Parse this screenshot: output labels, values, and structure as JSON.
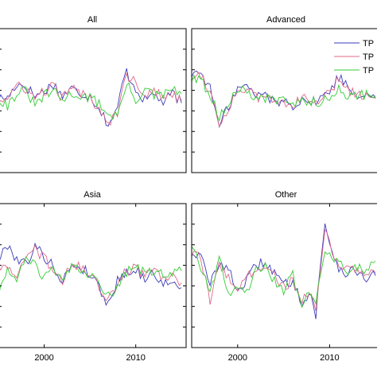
{
  "chart_data": [
    {
      "type": "line",
      "title": "All",
      "xlim": [
        1995,
        2015.5
      ],
      "xticks": [],
      "ylim": [
        -1.5,
        1.5
      ],
      "legend": null,
      "series": [
        {
          "color": "#3b3bb8",
          "x": [
            1995,
            1996,
            1997,
            1998,
            1999,
            2000,
            2001,
            2002,
            2003,
            2004,
            2005,
            2006,
            2007,
            2008,
            2008.5,
            2009,
            2010,
            2011,
            2012,
            2013,
            2014,
            2015
          ],
          "y": [
            0.05,
            0.05,
            0.35,
            0.3,
            0.1,
            0.2,
            0.35,
            0.1,
            0.25,
            0.15,
            0.1,
            -0.15,
            -0.5,
            -0.2,
            0.35,
            0.6,
            0.25,
            0.0,
            0.15,
            -0.05,
            0.15,
            -0.05
          ]
        },
        {
          "color": "#e06a8a",
          "x": [
            1995,
            1996,
            1997,
            1998,
            1999,
            2000,
            2001,
            2002,
            2003,
            2004,
            2005,
            2006,
            2007,
            2008,
            2008.5,
            2009,
            2010,
            2011,
            2012,
            2013,
            2014,
            2015
          ],
          "y": [
            0.0,
            0.05,
            0.3,
            0.25,
            0.05,
            0.2,
            0.3,
            0.05,
            0.25,
            0.15,
            0.05,
            -0.15,
            -0.45,
            -0.25,
            0.3,
            0.55,
            0.35,
            0.15,
            0.2,
            0.05,
            0.15,
            0.0
          ]
        },
        {
          "color": "#33cc33",
          "x": [
            1995,
            1996,
            1997,
            1998,
            1999,
            2000,
            2001,
            2002,
            2003,
            2004,
            2005,
            2006,
            2007,
            2008,
            2008.5,
            2009,
            2010,
            2011,
            2012,
            2013,
            2014,
            2015
          ],
          "y": [
            0.05,
            -0.1,
            0.15,
            0.2,
            -0.1,
            0.1,
            0.2,
            0.0,
            0.15,
            0.1,
            0.05,
            -0.05,
            -0.3,
            -0.3,
            0.0,
            0.35,
            0.0,
            0.25,
            0.1,
            0.1,
            0.25,
            0.15
          ]
        }
      ]
    },
    {
      "type": "line",
      "title": "Advanced",
      "xlim": [
        1995,
        2015.5
      ],
      "xticks": [],
      "ylim": [
        -1.5,
        1.5
      ],
      "legend": {
        "position": "top-right",
        "labels": [
          "TP",
          "TP",
          "TP"
        ]
      },
      "series": [
        {
          "color": "#3b3bb8",
          "x": [
            1995,
            1996,
            1997,
            1998,
            1999,
            2000,
            2001,
            2002,
            2003,
            2004,
            2005,
            2006,
            2007,
            2008,
            2009,
            2010,
            2011,
            2012,
            2013,
            2014,
            2015
          ],
          "y": [
            0.55,
            0.6,
            0.25,
            -0.55,
            -0.1,
            0.25,
            0.3,
            0.1,
            0.15,
            -0.05,
            0.0,
            -0.1,
            0.05,
            -0.05,
            0.05,
            0.2,
            0.5,
            0.3,
            0.1,
            0.2,
            0.05
          ]
        },
        {
          "color": "#e06a8a",
          "x": [
            1995,
            1996,
            1997,
            1998,
            1999,
            2000,
            2001,
            2002,
            2003,
            2004,
            2005,
            2006,
            2007,
            2008,
            2009,
            2010,
            2011,
            2012,
            2013,
            2014,
            2015
          ],
          "y": [
            0.5,
            0.55,
            0.2,
            -0.5,
            -0.15,
            0.2,
            0.25,
            0.05,
            0.1,
            -0.05,
            0.0,
            -0.1,
            0.05,
            -0.05,
            0.0,
            0.15,
            0.45,
            0.25,
            0.1,
            0.15,
            0.05
          ]
        },
        {
          "color": "#33cc33",
          "x": [
            1995,
            1996,
            1997,
            1998,
            1999,
            2000,
            2001,
            2002,
            2003,
            2004,
            2005,
            2006,
            2007,
            2008,
            2009,
            2010,
            2011,
            2012,
            2013,
            2014,
            2015
          ],
          "y": [
            0.45,
            0.4,
            0.15,
            -0.35,
            -0.05,
            0.2,
            0.2,
            0.05,
            0.05,
            0.0,
            0.05,
            -0.05,
            0.0,
            0.0,
            -0.05,
            0.05,
            0.3,
            0.1,
            0.1,
            0.15,
            0.1
          ]
        }
      ]
    },
    {
      "type": "line",
      "title": "Asia",
      "xlim": [
        1995,
        2015.5
      ],
      "xticks": [
        2000,
        2010
      ],
      "ylim": [
        -1.5,
        1.5
      ],
      "legend": null,
      "series": [
        {
          "color": "#3b3bb8",
          "x": [
            1995,
            1996,
            1997,
            1998,
            1999,
            2000,
            2001,
            2002,
            2003,
            2004,
            2005,
            2006,
            2007,
            2008,
            2009,
            2010,
            2011,
            2012,
            2013,
            2014,
            2015
          ],
          "y": [
            0.3,
            0.65,
            0.35,
            0.25,
            0.6,
            0.4,
            0.2,
            -0.15,
            0.25,
            0.15,
            0.05,
            -0.25,
            -0.6,
            -0.1,
            0.1,
            0.1,
            -0.05,
            0.05,
            -0.15,
            -0.2,
            -0.25
          ]
        },
        {
          "color": "#e06a8a",
          "x": [
            1995,
            1996,
            1997,
            1998,
            1999,
            2000,
            2001,
            2002,
            2003,
            2004,
            2005,
            2006,
            2007,
            2008,
            2009,
            2010,
            2011,
            2012,
            2013,
            2014,
            2015
          ],
          "y": [
            0.25,
            0.1,
            0.0,
            0.35,
            0.55,
            0.35,
            0.15,
            -0.1,
            0.25,
            0.15,
            0.05,
            -0.2,
            -0.55,
            -0.15,
            0.1,
            0.15,
            0.0,
            0.1,
            -0.05,
            -0.05,
            -0.15
          ]
        },
        {
          "color": "#33cc33",
          "x": [
            1995,
            1996,
            1997,
            1998,
            1999,
            2000,
            2001,
            2002,
            2003,
            2004,
            2005,
            2006,
            2007,
            2008,
            2009,
            2010,
            2011,
            2012,
            2013,
            2014,
            2015
          ],
          "y": [
            -0.4,
            0.2,
            -0.2,
            0.4,
            0.2,
            -0.05,
            0.1,
            -0.15,
            0.15,
            0.1,
            0.0,
            -0.1,
            -0.45,
            -0.2,
            0.05,
            0.2,
            0.05,
            0.1,
            0.05,
            0.05,
            0.1
          ]
        }
      ]
    },
    {
      "type": "line",
      "title": "Other",
      "xlim": [
        1995,
        2015.5
      ],
      "xticks": [
        2000,
        2010
      ],
      "ylim": [
        -1.5,
        1.5
      ],
      "legend": null,
      "series": [
        {
          "color": "#3b3bb8",
          "x": [
            1995,
            1996,
            1997,
            1998,
            1999,
            2000,
            2001,
            2002,
            2003,
            2004,
            2005,
            2006,
            2007,
            2008,
            2008.5,
            2009,
            2009.5,
            2010,
            2011,
            2012,
            2013,
            2014,
            2015
          ],
          "y": [
            0.5,
            0.4,
            -0.2,
            0.3,
            0.1,
            -0.3,
            -0.1,
            0.2,
            0.3,
            0.05,
            -0.2,
            -0.1,
            -0.55,
            -0.4,
            -0.85,
            0.2,
            1.05,
            0.7,
            0.15,
            0.05,
            0.1,
            -0.05,
            0.0
          ]
        },
        {
          "color": "#e06a8a",
          "x": [
            1995,
            1996,
            1997,
            1998,
            1999,
            2000,
            2001,
            2002,
            2003,
            2004,
            2005,
            2006,
            2007,
            2008,
            2008.5,
            2009,
            2009.5,
            2010,
            2011,
            2012,
            2013,
            2014,
            2015
          ],
          "y": [
            0.45,
            0.35,
            -0.5,
            0.2,
            0.0,
            -0.3,
            -0.05,
            0.15,
            0.25,
            0.0,
            -0.25,
            -0.1,
            -0.5,
            -0.45,
            -0.8,
            0.15,
            0.9,
            0.65,
            0.2,
            0.15,
            0.15,
            0.05,
            0.05
          ]
        },
        {
          "color": "#33cc33",
          "x": [
            1995,
            1996,
            1997,
            1998,
            1999,
            2000,
            2001,
            2002,
            2003,
            2004,
            2005,
            2006,
            2007,
            2008,
            2008.5,
            2009,
            2009.5,
            2010,
            2011,
            2012,
            2013,
            2014,
            2015
          ],
          "y": [
            0.65,
            0.2,
            -0.35,
            0.35,
            -0.4,
            -0.2,
            -0.3,
            0.1,
            0.2,
            -0.1,
            -0.3,
            0.0,
            -0.6,
            -0.35,
            -0.55,
            0.1,
            0.4,
            0.5,
            0.25,
            0.1,
            0.2,
            0.1,
            0.3
          ]
        }
      ]
    }
  ]
}
